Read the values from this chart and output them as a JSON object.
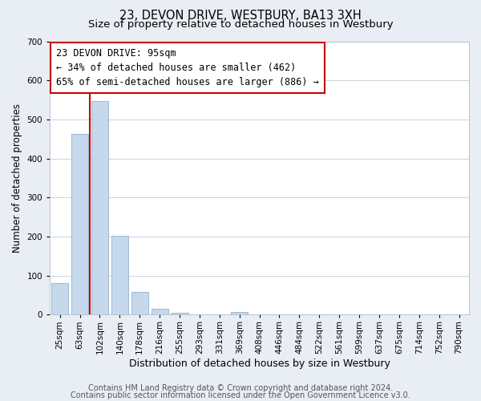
{
  "title": "23, DEVON DRIVE, WESTBURY, BA13 3XH",
  "subtitle": "Size of property relative to detached houses in Westbury",
  "xlabel": "Distribution of detached houses by size in Westbury",
  "ylabel": "Number of detached properties",
  "bar_labels": [
    "25sqm",
    "63sqm",
    "102sqm",
    "140sqm",
    "178sqm",
    "216sqm",
    "255sqm",
    "293sqm",
    "331sqm",
    "369sqm",
    "408sqm",
    "446sqm",
    "484sqm",
    "522sqm",
    "561sqm",
    "599sqm",
    "637sqm",
    "675sqm",
    "714sqm",
    "752sqm",
    "790sqm"
  ],
  "bar_heights": [
    80,
    462,
    548,
    202,
    58,
    15,
    5,
    0,
    0,
    6,
    0,
    0,
    0,
    0,
    0,
    0,
    0,
    0,
    0,
    0,
    0
  ],
  "bar_color": "#c5d8ec",
  "bar_edgecolor": "#9ab8d8",
  "ylim": [
    0,
    700
  ],
  "yticks": [
    0,
    100,
    200,
    300,
    400,
    500,
    600,
    700
  ],
  "vline_color": "#cc0000",
  "annotation_line1": "23 DEVON DRIVE: 95sqm",
  "annotation_line2": "← 34% of detached houses are smaller (462)",
  "annotation_line3": "65% of semi-detached houses are larger (886) →",
  "footer_line1": "Contains HM Land Registry data © Crown copyright and database right 2024.",
  "footer_line2": "Contains public sector information licensed under the Open Government Licence v3.0.",
  "background_color": "#e8eef4",
  "plot_background_color": "#ffffff",
  "grid_color": "#c8d4e0",
  "title_fontsize": 10.5,
  "subtitle_fontsize": 9.5,
  "xlabel_fontsize": 9,
  "ylabel_fontsize": 8.5,
  "tick_fontsize": 7.5,
  "annotation_fontsize": 8.5,
  "footer_fontsize": 7
}
